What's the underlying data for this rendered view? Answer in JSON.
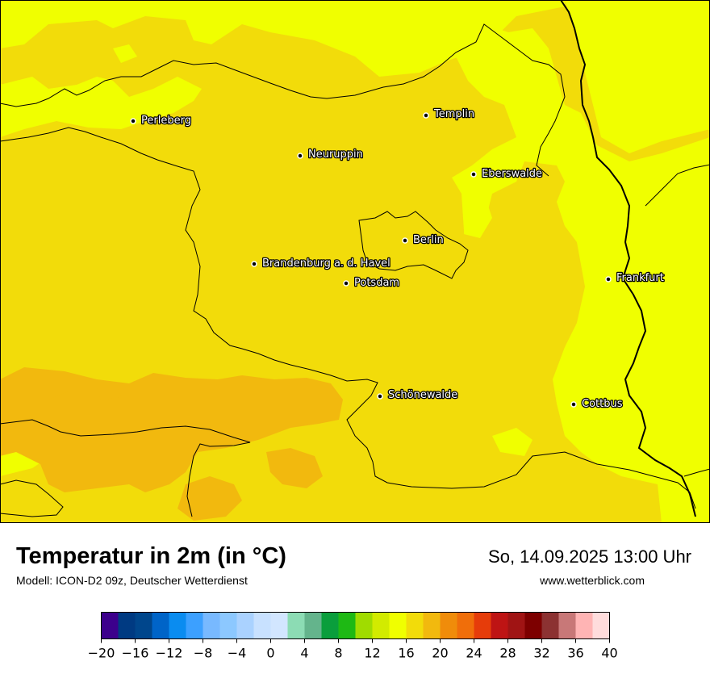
{
  "map": {
    "cities": [
      {
        "name": "Perleberg"
      },
      {
        "name": "Templin"
      },
      {
        "name": "Neuruppin"
      },
      {
        "name": "Eberswalde"
      },
      {
        "name": "Berlin"
      },
      {
        "name": "Brandenburg a. d. Havel"
      },
      {
        "name": "Potsdam"
      },
      {
        "name": "Frankfurt"
      },
      {
        "name": "Schönewalde"
      },
      {
        "name": "Cottbus"
      }
    ],
    "colors": {
      "temp_16_18": "#f0ff00",
      "temp_18_20": "#f2dc0a",
      "temp_20_22": "#f2b90e",
      "border": "#000000"
    }
  },
  "footer": {
    "title": "Temperatur in 2m (in °C)",
    "subtitle": "Modell: ICON-D2 09z, Deutscher Wetterdienst",
    "datetime": "So, 14.09.2025 13:00 Uhr",
    "website": "www.wetterblick.com"
  },
  "legend": {
    "min": -20,
    "max": 40,
    "step": 2,
    "ticks": [
      "−20",
      "−16",
      "−12",
      "−8",
      "−4",
      "0",
      "4",
      "8",
      "12",
      "16",
      "20",
      "24",
      "28",
      "32",
      "36",
      "40"
    ],
    "colors": [
      "#3c008c",
      "#003a82",
      "#00468c",
      "#0064c8",
      "#0a8cf0",
      "#3ca0ff",
      "#78b9ff",
      "#8cc8ff",
      "#aad2ff",
      "#c8e1ff",
      "#d2e6ff",
      "#8cdcb4",
      "#64b48c",
      "#0a9e3c",
      "#1eb914",
      "#a0dc00",
      "#d2eb00",
      "#f0ff00",
      "#f2dc0a",
      "#f2b90e",
      "#f08c0a",
      "#f06e0a",
      "#e63c0a",
      "#be1414",
      "#a01414",
      "#7d0000",
      "#8c3232",
      "#c87878",
      "#ffb4b4",
      "#ffdcdc"
    ]
  }
}
